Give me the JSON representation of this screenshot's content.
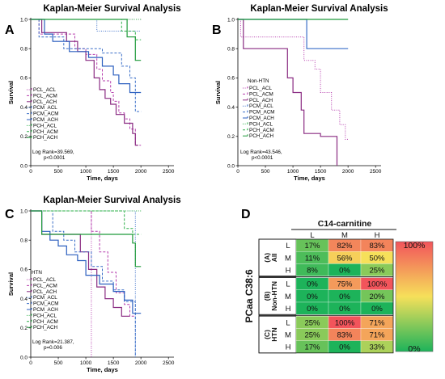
{
  "chart_data": [
    {
      "panel": "A",
      "type": "line",
      "title": "Kaplan-Meier Survival Analysis",
      "xlabel": "Time, days",
      "ylabel": "Survival",
      "xlim": [
        0,
        2600
      ],
      "ylim": [
        0,
        1.0
      ],
      "xticks": [
        "0",
        "500",
        "1000",
        "1500",
        "2000",
        "2500"
      ],
      "yticks": [
        "0.0",
        "0.2",
        "0.4",
        "0.6",
        "0.8",
        "1.0"
      ],
      "legend": [
        "PCL_ACL",
        "PCL_ACM",
        "PCL_ACH",
        "PCM_ACL",
        "PCM_ACM",
        "PCM_ACH",
        "PCH_ACL",
        "PCH_ACM",
        "PCH_ACH"
      ],
      "stat_line1": "Log Rank=39.569,",
      "stat_line2": "p<0.0001",
      "series": [
        {
          "name": "PCL_ACL",
          "color": "#b63fae",
          "style": "dot",
          "points": [
            [
              0,
              1.0
            ],
            [
              700,
              1.0
            ],
            [
              2000,
              1.0
            ]
          ]
        },
        {
          "name": "PCL_ACM",
          "color": "#b63fae",
          "style": "dash",
          "points": [
            [
              0,
              1.0
            ],
            [
              150,
              0.9
            ],
            [
              700,
              0.9
            ],
            [
              800,
              0.8
            ],
            [
              1000,
              0.76
            ],
            [
              1200,
              0.66
            ],
            [
              1300,
              0.58
            ],
            [
              1450,
              0.5
            ],
            [
              1500,
              0.44
            ],
            [
              1600,
              0.36
            ],
            [
              1700,
              0.32
            ],
            [
              1800,
              0.25
            ],
            [
              1900,
              0.14
            ],
            [
              2000,
              0.14
            ]
          ]
        },
        {
          "name": "PCL_ACH",
          "color": "#8a2b82",
          "style": "solid",
          "points": [
            [
              0,
              1.0
            ],
            [
              200,
              0.91
            ],
            [
              650,
              0.85
            ],
            [
              850,
              0.78
            ],
            [
              1000,
              0.72
            ],
            [
              1150,
              0.6
            ],
            [
              1250,
              0.52
            ],
            [
              1350,
              0.46
            ],
            [
              1450,
              0.42
            ],
            [
              1550,
              0.35
            ],
            [
              1700,
              0.29
            ],
            [
              1850,
              0.22
            ],
            [
              1900,
              0.14
            ],
            [
              1950,
              0.14
            ]
          ]
        },
        {
          "name": "PCM_ACL",
          "color": "#3a6ec8",
          "style": "dot",
          "points": [
            [
              0,
              1.0
            ],
            [
              650,
              1.0
            ],
            [
              1200,
              0.92
            ],
            [
              2000,
              0.92
            ]
          ]
        },
        {
          "name": "PCM_ACM",
          "color": "#3a6ec8",
          "style": "dash",
          "points": [
            [
              0,
              1.0
            ],
            [
              150,
              0.88
            ],
            [
              500,
              0.88
            ],
            [
              600,
              0.8
            ],
            [
              900,
              0.8
            ],
            [
              1300,
              0.77
            ],
            [
              1650,
              0.68
            ],
            [
              1800,
              0.6
            ],
            [
              1900,
              0.37
            ],
            [
              2000,
              0.37
            ]
          ]
        },
        {
          "name": "PCM_ACH",
          "color": "#2b5fbf",
          "style": "solid",
          "points": [
            [
              0,
              1.0
            ],
            [
              250,
              0.9
            ],
            [
              400,
              0.85
            ],
            [
              600,
              0.85
            ],
            [
              700,
              0.78
            ],
            [
              1050,
              0.74
            ],
            [
              1300,
              0.68
            ],
            [
              1500,
              0.62
            ],
            [
              1600,
              0.56
            ],
            [
              1800,
              0.5
            ],
            [
              2000,
              0.5
            ]
          ]
        },
        {
          "name": "PCH_ACL",
          "color": "#2fb04a",
          "style": "dot",
          "points": [
            [
              0,
              1.0
            ],
            [
              2000,
              1.0
            ]
          ]
        },
        {
          "name": "PCH_ACM",
          "color": "#2fb04a",
          "style": "dash",
          "points": [
            [
              0,
              1.0
            ],
            [
              1100,
              1.0
            ],
            [
              1650,
              0.92
            ],
            [
              1900,
              0.86
            ],
            [
              2000,
              0.86
            ]
          ]
        },
        {
          "name": "PCH_ACH",
          "color": "#1f9a3a",
          "style": "solid",
          "points": [
            [
              0,
              1.0
            ],
            [
              1050,
              1.0
            ],
            [
              1750,
              0.88
            ],
            [
              1900,
              0.72
            ],
            [
              2000,
              0.72
            ]
          ]
        }
      ]
    },
    {
      "panel": "B",
      "type": "line",
      "title": "Kaplan-Meier Survival Analysis",
      "xlabel": "Time, days",
      "ylabel": "Survival",
      "xlim": [
        0,
        2600
      ],
      "ylim": [
        0,
        1.0
      ],
      "xticks": [
        "0",
        "500",
        "1000",
        "1500",
        "2000",
        "2500"
      ],
      "yticks": [
        "0.0",
        "0.2",
        "0.4",
        "0.6",
        "0.8",
        "1.0"
      ],
      "legend_title": "Non-HTN",
      "legend": [
        "PCL_ACL",
        "PCL_ACM",
        "PCL_ACH",
        "PCM_ACL",
        "PCM_ACM",
        "PCM_ACH",
        "PCH_ACL",
        "PCH_ACM",
        "PCH_ACH"
      ],
      "stat_line1": "Log Rank=43.546,",
      "stat_line2": "p<0.0001",
      "series": [
        {
          "name": "PCL_ACM",
          "color": "#b63fae",
          "style": "dot",
          "points": [
            [
              0,
              1.0
            ],
            [
              50,
              0.88
            ],
            [
              1100,
              0.88
            ],
            [
              1200,
              0.72
            ],
            [
              1400,
              0.66
            ],
            [
              1500,
              0.5
            ],
            [
              1700,
              0.38
            ],
            [
              1850,
              0.28
            ],
            [
              1950,
              0.18
            ],
            [
              2000,
              0.18
            ]
          ]
        },
        {
          "name": "PCL_ACH",
          "color": "#8a2b82",
          "style": "solid",
          "points": [
            [
              0,
              1.0
            ],
            [
              100,
              0.8
            ],
            [
              800,
              0.8
            ],
            [
              900,
              0.6
            ],
            [
              1000,
              0.5
            ],
            [
              1150,
              0.38
            ],
            [
              1200,
              0.22
            ],
            [
              1500,
              0.2
            ],
            [
              1800,
              0.0
            ]
          ]
        },
        {
          "name": "PCM_ACH",
          "color": "#3a6ec8",
          "style": "solid",
          "points": [
            [
              0,
              1.0
            ],
            [
              1250,
              1.0
            ],
            [
              1250,
              0.8
            ],
            [
              2000,
              0.8
            ]
          ]
        },
        {
          "name": "PCH_ACH",
          "color": "#1f9a3a",
          "style": "solid",
          "points": [
            [
              0,
              1.0
            ],
            [
              2000,
              1.0
            ]
          ]
        }
      ]
    },
    {
      "panel": "C",
      "type": "line",
      "title": "Kaplan-Meier Survival Analysis",
      "xlabel": "Time, days",
      "ylabel": "Survival",
      "xlim": [
        0,
        2600
      ],
      "ylim": [
        0,
        1.0
      ],
      "xticks": [
        "0",
        "500",
        "1000",
        "1500",
        "2000",
        "2500"
      ],
      "yticks": [
        "0.0",
        "0.2",
        "0.4",
        "0.6",
        "0.8",
        "1.0"
      ],
      "legend_title": "HTN",
      "legend": [
        "PCL_ACL",
        "PCL_ACM",
        "PCL_ACH",
        "PCM_ACL",
        "PCM_ACM",
        "PCM_ACH",
        "PCH_ACL",
        "PCH_ACM",
        "PCH_ACH"
      ],
      "stat_line1": "Log Rank=21.387,",
      "stat_line2": "p=0.006",
      "series": [
        {
          "name": "PCL_ACL",
          "color": "#b63fae",
          "style": "dot",
          "points": [
            [
              0,
              1.0
            ],
            [
              1100,
              1.0
            ],
            [
              1100,
              0.0
            ]
          ]
        },
        {
          "name": "PCL_ACM",
          "color": "#b63fae",
          "style": "dash",
          "points": [
            [
              0,
              1.0
            ],
            [
              1000,
              1.0
            ],
            [
              1100,
              0.86
            ],
            [
              1250,
              0.72
            ],
            [
              1400,
              0.58
            ],
            [
              1550,
              0.44
            ],
            [
              1700,
              0.36
            ],
            [
              1800,
              0.28
            ],
            [
              1900,
              0.28
            ]
          ]
        },
        {
          "name": "PCL_ACH",
          "color": "#8a2b82",
          "style": "solid",
          "points": [
            [
              0,
              1.0
            ],
            [
              200,
              0.84
            ],
            [
              700,
              0.84
            ],
            [
              900,
              0.72
            ],
            [
              1050,
              0.6
            ],
            [
              1200,
              0.48
            ],
            [
              1350,
              0.4
            ],
            [
              1500,
              0.34
            ],
            [
              1650,
              0.28
            ],
            [
              1800,
              0.28
            ]
          ]
        },
        {
          "name": "PCM_ACL",
          "color": "#3a6ec8",
          "style": "dot",
          "points": [
            [
              0,
              1.0
            ],
            [
              650,
              1.0
            ],
            [
              1900,
              1.0
            ],
            [
              1900,
              0.0
            ]
          ]
        },
        {
          "name": "PCM_ACM",
          "color": "#3a6ec8",
          "style": "dash",
          "points": [
            [
              0,
              1.0
            ],
            [
              400,
              0.86
            ],
            [
              600,
              0.8
            ],
            [
              800,
              0.72
            ],
            [
              1100,
              0.62
            ],
            [
              1300,
              0.52
            ],
            [
              1500,
              0.46
            ],
            [
              1700,
              0.38
            ],
            [
              1900,
              0.3
            ],
            [
              1900,
              0.0
            ]
          ]
        },
        {
          "name": "PCM_ACH",
          "color": "#2b5fbf",
          "style": "solid",
          "points": [
            [
              0,
              1.0
            ],
            [
              200,
              0.86
            ],
            [
              350,
              0.8
            ],
            [
              500,
              0.76
            ],
            [
              650,
              0.7
            ],
            [
              850,
              0.66
            ],
            [
              1000,
              0.56
            ],
            [
              1250,
              0.5
            ],
            [
              1500,
              0.45
            ],
            [
              1700,
              0.39
            ],
            [
              1850,
              0.3
            ],
            [
              2000,
              0.3
            ]
          ]
        },
        {
          "name": "PCH_ACL",
          "color": "#2fb04a",
          "style": "dot",
          "points": [
            [
              0,
              1.0
            ],
            [
              2000,
              1.0
            ]
          ]
        },
        {
          "name": "PCH_ACM",
          "color": "#2fb04a",
          "style": "dash",
          "points": [
            [
              0,
              1.0
            ],
            [
              1200,
              1.0
            ],
            [
              1700,
              0.88
            ],
            [
              1850,
              0.84
            ],
            [
              2000,
              0.84
            ]
          ]
        },
        {
          "name": "PCH_ACH",
          "color": "#1f9a3a",
          "style": "solid",
          "points": [
            [
              0,
              1.0
            ],
            [
              200,
              0.84
            ],
            [
              1400,
              0.84
            ],
            [
              1850,
              0.78
            ],
            [
              1900,
              0.62
            ],
            [
              2000,
              0.62
            ]
          ]
        }
      ]
    },
    {
      "panel": "D",
      "type": "heatmap",
      "title": "C14-carnitine",
      "ylabel": "PCaa C38:6",
      "columns": [
        "L",
        "M",
        "H"
      ],
      "groups": [
        "(A)\nAll",
        "(B)\nNon-HTN",
        "(C)\nHTN"
      ],
      "row_labels": [
        "L",
        "M",
        "H"
      ],
      "values": [
        [
          [
            17,
            82,
            83
          ],
          [
            11,
            56,
            50
          ],
          [
            8,
            0,
            25
          ]
        ],
        [
          [
            0,
            75,
            100
          ],
          [
            0,
            0,
            20
          ],
          [
            0,
            0,
            0
          ]
        ],
        [
          [
            25,
            100,
            71
          ],
          [
            25,
            83,
            71
          ],
          [
            17,
            0,
            33
          ]
        ]
      ],
      "colorbar_max": "100%",
      "colorbar_min": "0%",
      "colors": {
        "low": "#1db35a",
        "mid": "#f6e05a",
        "high": "#f2545b"
      }
    }
  ],
  "panel_labels": {
    "a": "A",
    "b": "B",
    "c": "C",
    "d": "D"
  }
}
